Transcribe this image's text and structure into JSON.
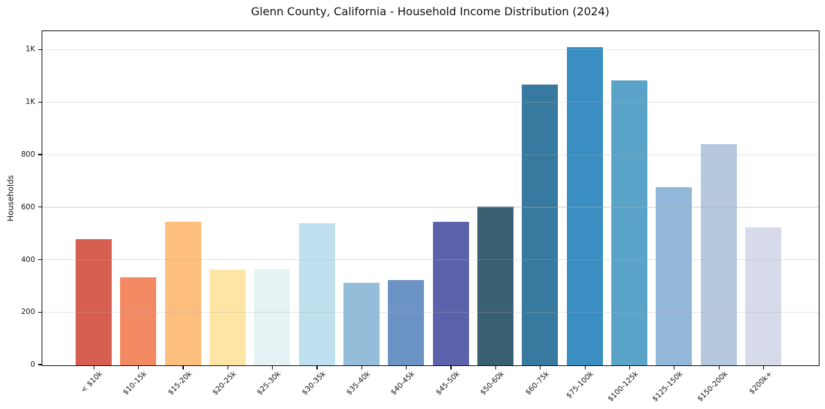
{
  "page": {
    "background": "#ffffff"
  },
  "chart_data": {
    "type": "bar",
    "title": "Glenn County, California - Household Income Distribution (2024)",
    "xlabel": "",
    "ylabel": "Households",
    "categories": [
      "< $10k",
      "$10-15k",
      "$15-20k",
      "$20-25k",
      "$25-30k",
      "$30-35k",
      "$35-40k",
      "$40-45k",
      "$45-50k",
      "$50-60k",
      "$60-75k",
      "$75-100k",
      "$100-125k",
      "$125-150k",
      "$150-200k",
      "$200k+"
    ],
    "values": [
      480,
      333,
      546,
      364,
      366,
      539,
      312,
      324,
      546,
      603,
      1068,
      1209,
      1083,
      678,
      841,
      523
    ],
    "bar_colors": [
      "#d75f52",
      "#f48a63",
      "#fdbe7e",
      "#fde5a3",
      "#e7f2f5",
      "#bfe0ee",
      "#93bdd9",
      "#6b93c4",
      "#5c61ab",
      "#386070",
      "#38799f",
      "#3a8ec2",
      "#5ba4c9",
      "#92b7d8",
      "#b5c8de",
      "#d7dae8"
    ],
    "ylim": [
      0,
      1270
    ],
    "yticks": [
      {
        "value": 0,
        "label": "0"
      },
      {
        "value": 200,
        "label": "200"
      },
      {
        "value": 400,
        "label": "400"
      },
      {
        "value": 600,
        "label": "600"
      },
      {
        "value": 800,
        "label": "800"
      },
      {
        "value": 1000,
        "label": "1K"
      },
      {
        "value": 1200,
        "label": "1K"
      }
    ],
    "grid": "horizontal",
    "legend": "none",
    "axis_color": "#000000",
    "text_color": "#111111",
    "grid_color": "#b0b0b0",
    "grid_alpha": 0.35
  }
}
